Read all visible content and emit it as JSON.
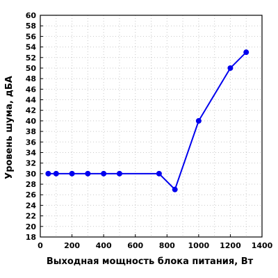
{
  "chart_data": {
    "type": "line",
    "title": "",
    "xlabel": "Выходная мощность блока питания, Вт",
    "ylabel": "Уровень шума, дБА",
    "xlim": [
      0,
      1400
    ],
    "ylim": [
      18,
      60
    ],
    "xticks": [
      "0",
      "200",
      "400",
      "600",
      "800",
      "1000",
      "1200",
      "1400"
    ],
    "yticks": [
      "18",
      "20",
      "22",
      "24",
      "26",
      "28",
      "30",
      "32",
      "34",
      "36",
      "38",
      "40",
      "42",
      "44",
      "46",
      "48",
      "50",
      "52",
      "54",
      "56",
      "58",
      "60"
    ],
    "grid": true,
    "series": [
      {
        "color": "#0000ee",
        "x": [
          50,
          100,
          200,
          300,
          400,
          500,
          750,
          850,
          1000,
          1200,
          1300
        ],
        "y": [
          30,
          30,
          30,
          30,
          30,
          30,
          30,
          27,
          40,
          50,
          53
        ]
      }
    ]
  }
}
